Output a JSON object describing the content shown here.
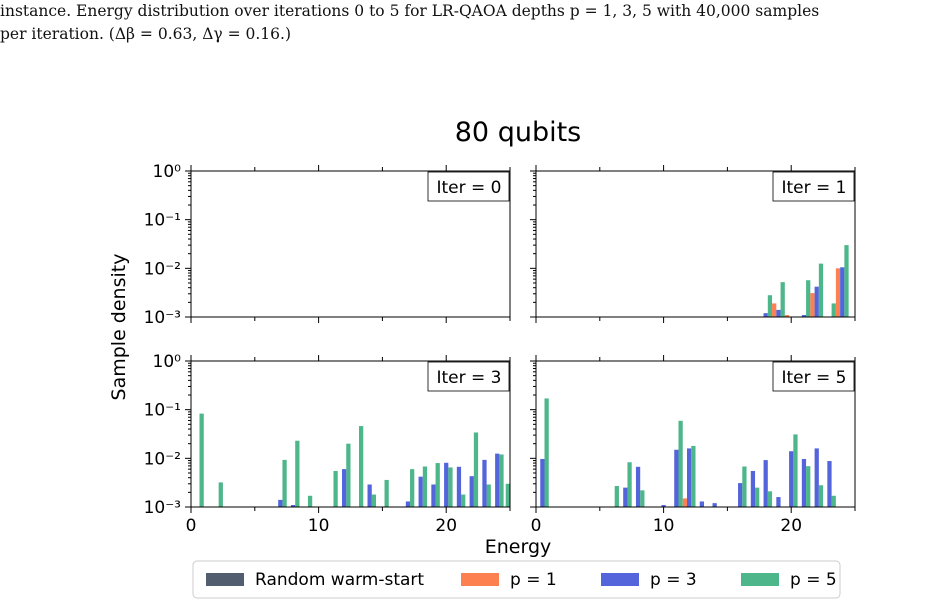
{
  "caption": {
    "line1": "instance. Energy distribution over iterations 0 to 5 for LR-QAOA depths p = 1, 3, 5 with 40,000 samples",
    "line2": "per iteration. (Δβ = 0.63,  Δγ = 0.16.)"
  },
  "colors": {
    "random": "#535d70",
    "p1": "#fd8050",
    "p3": "#5465dc",
    "p5": "#4db68a"
  },
  "chart_data": {
    "type": "bar",
    "title": "80 qubits",
    "xlabel": "Energy",
    "ylabel": "Sample density",
    "yscale": "log",
    "ylim": [
      0.001,
      1
    ],
    "xlim": [
      0,
      25
    ],
    "xticks": [
      "0",
      "10",
      "20"
    ],
    "yticks": [
      "10⁰",
      "10⁻¹",
      "10⁻²",
      "10⁻³"
    ],
    "legend": [
      "Random warm-start",
      "p = 1",
      "p = 3",
      "p = 5"
    ],
    "legend_position": "bottom-center",
    "panels": [
      {
        "label": "Iter = 0",
        "bars": []
      },
      {
        "label": "Iter = 1",
        "bars": [
          {
            "e": 18,
            "series": "p3",
            "v": 0.0012
          },
          {
            "e": 18,
            "series": "p5",
            "v": 0.0028
          },
          {
            "e": 19,
            "series": "p1",
            "v": 0.0019
          },
          {
            "e": 19,
            "series": "p3",
            "v": 0.0014
          },
          {
            "e": 19,
            "series": "p5",
            "v": 0.0052
          },
          {
            "e": 20,
            "series": "p1",
            "v": 0.0011
          },
          {
            "e": 21,
            "series": "p3",
            "v": 0.0011
          },
          {
            "e": 21,
            "series": "p5",
            "v": 0.0057
          },
          {
            "e": 22,
            "series": "p1",
            "v": 0.0031
          },
          {
            "e": 22,
            "series": "p3",
            "v": 0.0042
          },
          {
            "e": 22,
            "series": "p5",
            "v": 0.0125
          },
          {
            "e": 23,
            "series": "p5",
            "v": 0.0019
          },
          {
            "e": 24,
            "series": "p1",
            "v": 0.01
          },
          {
            "e": 24,
            "series": "p3",
            "v": 0.0105
          },
          {
            "e": 24,
            "series": "p5",
            "v": 0.03
          }
        ]
      },
      {
        "label": "Iter = 3",
        "bars": [
          {
            "e": 0,
            "series": "p5",
            "v": 0.083
          },
          {
            "e": 2,
            "series": "p5",
            "v": 0.0032
          },
          {
            "e": 7,
            "series": "p5",
            "v": 0.0093
          },
          {
            "e": 7,
            "series": "p3",
            "v": 0.0014
          },
          {
            "e": 8,
            "series": "p5",
            "v": 0.023
          },
          {
            "e": 8,
            "series": "p3",
            "v": 0.0011
          },
          {
            "e": 9,
            "series": "p5",
            "v": 0.0017
          },
          {
            "e": 11,
            "series": "p5",
            "v": 0.0055
          },
          {
            "e": 12,
            "series": "p5",
            "v": 0.02
          },
          {
            "e": 12,
            "series": "p3",
            "v": 0.006
          },
          {
            "e": 13,
            "series": "p5",
            "v": 0.046
          },
          {
            "e": 14,
            "series": "p5",
            "v": 0.0018
          },
          {
            "e": 14,
            "series": "p3",
            "v": 0.0029
          },
          {
            "e": 15,
            "series": "p5",
            "v": 0.0036
          },
          {
            "e": 17,
            "series": "p3",
            "v": 0.0013
          },
          {
            "e": 17,
            "series": "p5",
            "v": 0.006
          },
          {
            "e": 18,
            "series": "p3",
            "v": 0.0042
          },
          {
            "e": 18,
            "series": "p5",
            "v": 0.0068
          },
          {
            "e": 19,
            "series": "p3",
            "v": 0.0029
          },
          {
            "e": 19,
            "series": "p5",
            "v": 0.008
          },
          {
            "e": 20,
            "series": "p3",
            "v": 0.0081
          },
          {
            "e": 20,
            "series": "p5",
            "v": 0.0065
          },
          {
            "e": 21,
            "series": "p5",
            "v": 0.0018
          },
          {
            "e": 21,
            "series": "p3",
            "v": 0.0067
          },
          {
            "e": 22,
            "series": "p5",
            "v": 0.034
          },
          {
            "e": 22,
            "series": "p3",
            "v": 0.0043
          },
          {
            "e": 23,
            "series": "p5",
            "v": 0.0029
          },
          {
            "e": 23,
            "series": "p3",
            "v": 0.0093
          },
          {
            "e": 24,
            "series": "p5",
            "v": 0.012
          },
          {
            "e": 24,
            "series": "p3",
            "v": 0.0125
          },
          {
            "e": 25,
            "series": "p5",
            "v": 0.003
          }
        ]
      },
      {
        "label": "Iter = 5",
        "bars": [
          {
            "e": 0,
            "series": "p3",
            "v": 0.0097
          },
          {
            "e": 0,
            "series": "p5",
            "v": 0.17
          },
          {
            "e": 6,
            "series": "p5",
            "v": 0.0027
          },
          {
            "e": 7,
            "series": "p3",
            "v": 0.0025
          },
          {
            "e": 7,
            "series": "p5",
            "v": 0.0083
          },
          {
            "e": 8,
            "series": "p3",
            "v": 0.0067
          },
          {
            "e": 8,
            "series": "p5",
            "v": 0.0022
          },
          {
            "e": 10,
            "series": "p3",
            "v": 0.0011
          },
          {
            "e": 11,
            "series": "p3",
            "v": 0.015
          },
          {
            "e": 11,
            "series": "p5",
            "v": 0.059
          },
          {
            "e": 12,
            "series": "p1",
            "v": 0.0015
          },
          {
            "e": 12,
            "series": "p3",
            "v": 0.016
          },
          {
            "e": 12,
            "series": "p5",
            "v": 0.018
          },
          {
            "e": 13,
            "series": "p3",
            "v": 0.0013
          },
          {
            "e": 14,
            "series": "p3",
            "v": 0.0012
          },
          {
            "e": 16,
            "series": "p3",
            "v": 0.0031
          },
          {
            "e": 16,
            "series": "p5",
            "v": 0.0068
          },
          {
            "e": 17,
            "series": "p3",
            "v": 0.0055
          },
          {
            "e": 17,
            "series": "p5",
            "v": 0.0025
          },
          {
            "e": 18,
            "series": "p3",
            "v": 0.0092
          },
          {
            "e": 18,
            "series": "p5",
            "v": 0.0021
          },
          {
            "e": 19,
            "series": "p3",
            "v": 0.0016
          },
          {
            "e": 20,
            "series": "p3",
            "v": 0.014
          },
          {
            "e": 20,
            "series": "p5",
            "v": 0.031
          },
          {
            "e": 21,
            "series": "p3",
            "v": 0.0097
          },
          {
            "e": 21,
            "series": "p5",
            "v": 0.0069
          },
          {
            "e": 22,
            "series": "p3",
            "v": 0.016
          },
          {
            "e": 22,
            "series": "p5",
            "v": 0.0028
          },
          {
            "e": 23,
            "series": "p3",
            "v": 0.0088
          },
          {
            "e": 23,
            "series": "p5",
            "v": 0.0017
          }
        ]
      }
    ]
  }
}
